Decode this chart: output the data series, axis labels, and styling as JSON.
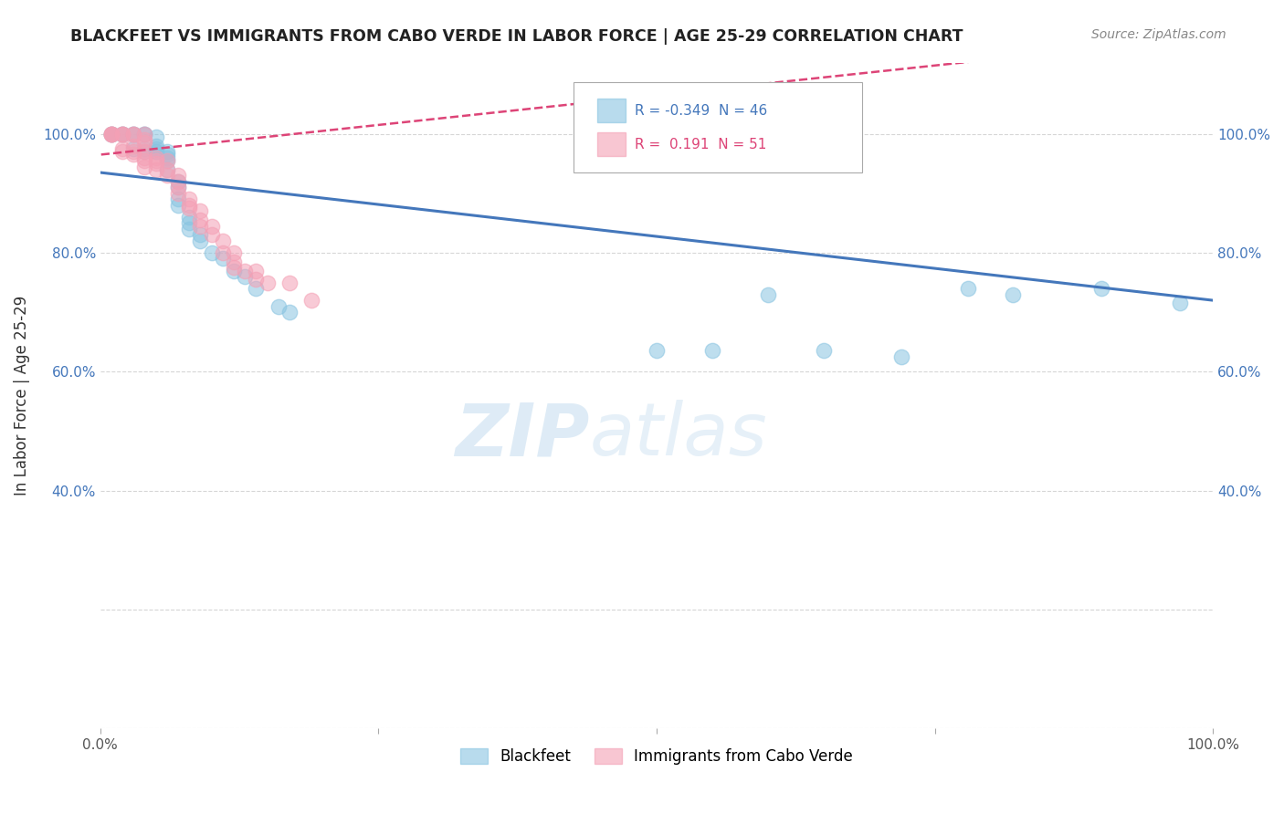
{
  "title": "BLACKFEET VS IMMIGRANTS FROM CABO VERDE IN LABOR FORCE | AGE 25-29 CORRELATION CHART",
  "source": "Source: ZipAtlas.com",
  "ylabel": "In Labor Force | Age 25-29",
  "xlim": [
    0.0,
    1.0
  ],
  "ylim": [
    0.0,
    1.12
  ],
  "blue_R": -0.349,
  "blue_N": 46,
  "pink_R": 0.191,
  "pink_N": 51,
  "blue_color": "#89c4e1",
  "pink_color": "#f4a0b5",
  "blue_line_color": "#4477bb",
  "pink_line_color": "#dd4477",
  "watermark_zip": "ZIP",
  "watermark_atlas": "atlas",
  "legend_label_blue": "Blackfeet",
  "legend_label_pink": "Immigrants from Cabo Verde",
  "blue_x": [
    0.01,
    0.01,
    0.02,
    0.02,
    0.03,
    0.03,
    0.03,
    0.04,
    0.04,
    0.04,
    0.04,
    0.05,
    0.05,
    0.05,
    0.05,
    0.05,
    0.06,
    0.06,
    0.06,
    0.06,
    0.06,
    0.07,
    0.07,
    0.07,
    0.07,
    0.08,
    0.08,
    0.08,
    0.09,
    0.09,
    0.1,
    0.11,
    0.12,
    0.13,
    0.14,
    0.16,
    0.17,
    0.5,
    0.55,
    0.6,
    0.65,
    0.72,
    0.78,
    0.82,
    0.9,
    0.97
  ],
  "blue_y": [
    1.0,
    1.0,
    1.0,
    1.0,
    1.0,
    1.0,
    0.975,
    1.0,
    1.0,
    0.975,
    0.97,
    0.995,
    0.97,
    0.97,
    0.98,
    0.975,
    0.965,
    0.94,
    0.955,
    0.97,
    0.96,
    0.88,
    0.89,
    0.91,
    0.92,
    0.86,
    0.85,
    0.84,
    0.83,
    0.82,
    0.8,
    0.79,
    0.77,
    0.76,
    0.74,
    0.71,
    0.7,
    0.635,
    0.635,
    0.73,
    0.635,
    0.625,
    0.74,
    0.73,
    0.74,
    0.715
  ],
  "pink_x": [
    0.01,
    0.01,
    0.01,
    0.01,
    0.02,
    0.02,
    0.02,
    0.02,
    0.02,
    0.03,
    0.03,
    0.03,
    0.03,
    0.03,
    0.04,
    0.04,
    0.04,
    0.04,
    0.04,
    0.04,
    0.04,
    0.05,
    0.05,
    0.05,
    0.05,
    0.06,
    0.06,
    0.06,
    0.07,
    0.07,
    0.07,
    0.07,
    0.08,
    0.08,
    0.08,
    0.09,
    0.09,
    0.09,
    0.1,
    0.1,
    0.11,
    0.11,
    0.12,
    0.12,
    0.12,
    0.13,
    0.14,
    0.14,
    0.15,
    0.17,
    0.19
  ],
  "pink_y": [
    1.0,
    1.0,
    1.0,
    1.0,
    1.0,
    1.0,
    1.0,
    0.975,
    0.97,
    1.0,
    1.0,
    0.98,
    0.97,
    0.965,
    1.0,
    0.99,
    0.985,
    0.97,
    0.96,
    0.955,
    0.945,
    0.96,
    0.955,
    0.95,
    0.94,
    0.955,
    0.94,
    0.93,
    0.93,
    0.92,
    0.91,
    0.9,
    0.89,
    0.88,
    0.875,
    0.87,
    0.855,
    0.845,
    0.845,
    0.83,
    0.82,
    0.8,
    0.8,
    0.785,
    0.775,
    0.77,
    0.77,
    0.755,
    0.75,
    0.75,
    0.72
  ],
  "blue_line_x0": 0.0,
  "blue_line_y0": 0.935,
  "blue_line_x1": 1.0,
  "blue_line_y1": 0.72,
  "pink_line_x0": 0.0,
  "pink_line_y0": 0.965,
  "pink_line_x1": 0.2,
  "pink_line_y1": 1.005,
  "yticks": [
    0.0,
    0.2,
    0.4,
    0.6,
    0.8,
    1.0
  ],
  "ytick_labels_left": [
    "",
    "",
    "40.0%",
    "60.0%",
    "80.0%",
    "100.0%"
  ],
  "ytick_labels_right": [
    "",
    "",
    "40.0%",
    "60.0%",
    "80.0%",
    "100.0%"
  ],
  "xticks": [
    0.0,
    0.25,
    0.5,
    0.75,
    1.0
  ],
  "xtick_labels": [
    "0.0%",
    "",
    "",
    "",
    "100.0%"
  ]
}
